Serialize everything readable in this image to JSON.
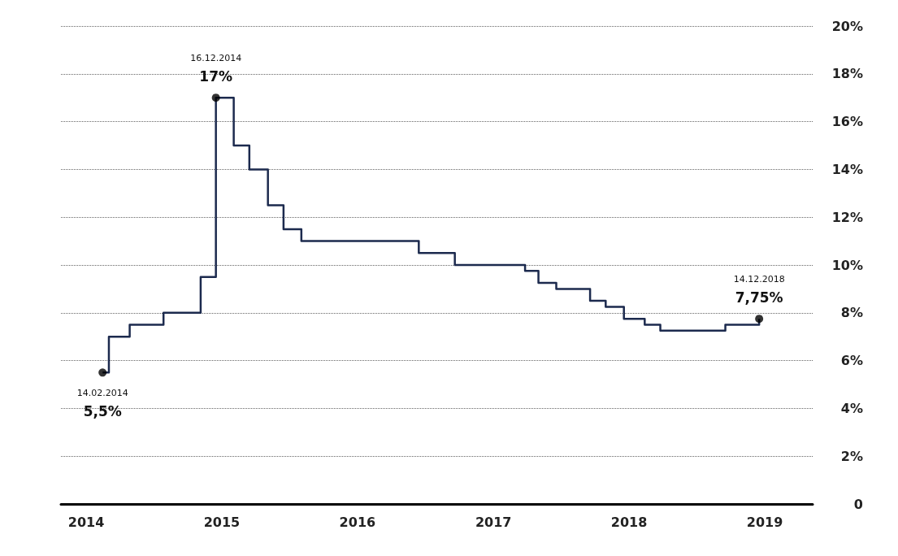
{
  "chart_data": {
    "type": "step",
    "xlim": [
      "2013-10-25",
      "2019-05-10"
    ],
    "xticks": [
      "2014",
      "2015",
      "2016",
      "2017",
      "2018",
      "2019"
    ],
    "ylim": [
      0,
      20
    ],
    "yticks": [
      {
        "value": 0,
        "label": "0"
      },
      {
        "value": 2,
        "label": "2%"
      },
      {
        "value": 4,
        "label": "4%"
      },
      {
        "value": 6,
        "label": "6%"
      },
      {
        "value": 8,
        "label": "8%"
      },
      {
        "value": 10,
        "label": "10%"
      },
      {
        "value": 12,
        "label": "12%"
      },
      {
        "value": 14,
        "label": "14%"
      },
      {
        "value": 16,
        "label": "16%"
      },
      {
        "value": 18,
        "label": "18%"
      },
      {
        "value": 20,
        "label": "20%"
      }
    ],
    "grid": "y",
    "marker": "none",
    "line_style": "solid",
    "series": [
      {
        "color": "#1c2a4e",
        "x": [
          "2014-02-14",
          "2014-03-03",
          "2014-04-28",
          "2014-07-28",
          "2014-11-05",
          "2014-12-16",
          "2015-02-02",
          "2015-03-16",
          "2015-05-05",
          "2015-06-16",
          "2015-08-03",
          "2016-06-14",
          "2016-09-19",
          "2017-03-27",
          "2017-05-02",
          "2017-06-19",
          "2017-09-18",
          "2017-10-30",
          "2017-12-18",
          "2018-02-12",
          "2018-03-26",
          "2018-09-17",
          "2018-12-17"
        ],
        "values": [
          5.5,
          7,
          7.5,
          8,
          9.5,
          17,
          15,
          14,
          12.5,
          11.5,
          11,
          10.5,
          10,
          9.75,
          9.25,
          9,
          8.5,
          8.25,
          7.75,
          7.5,
          7.25,
          7.5,
          7.75
        ]
      },
      {
        "type": "scatter",
        "marker": "circle",
        "color": "#000000",
        "x": [
          "2014-02-14",
          "2014-12-16",
          "2018-12-17"
        ],
        "values": [
          5.5,
          17,
          7.75
        ]
      }
    ],
    "annotations": [
      "14.02.2014",
      {
        "text": "5,5%",
        "x": "2014-02-14",
        "y": 5.5
      },
      "16.12.2014",
      {
        "text": "17%",
        "x": "2014-12-16",
        "y": 17
      },
      "14.12.2018",
      {
        "text": "7,75%",
        "x": "2018-12-17",
        "y": 7.75
      }
    ]
  }
}
